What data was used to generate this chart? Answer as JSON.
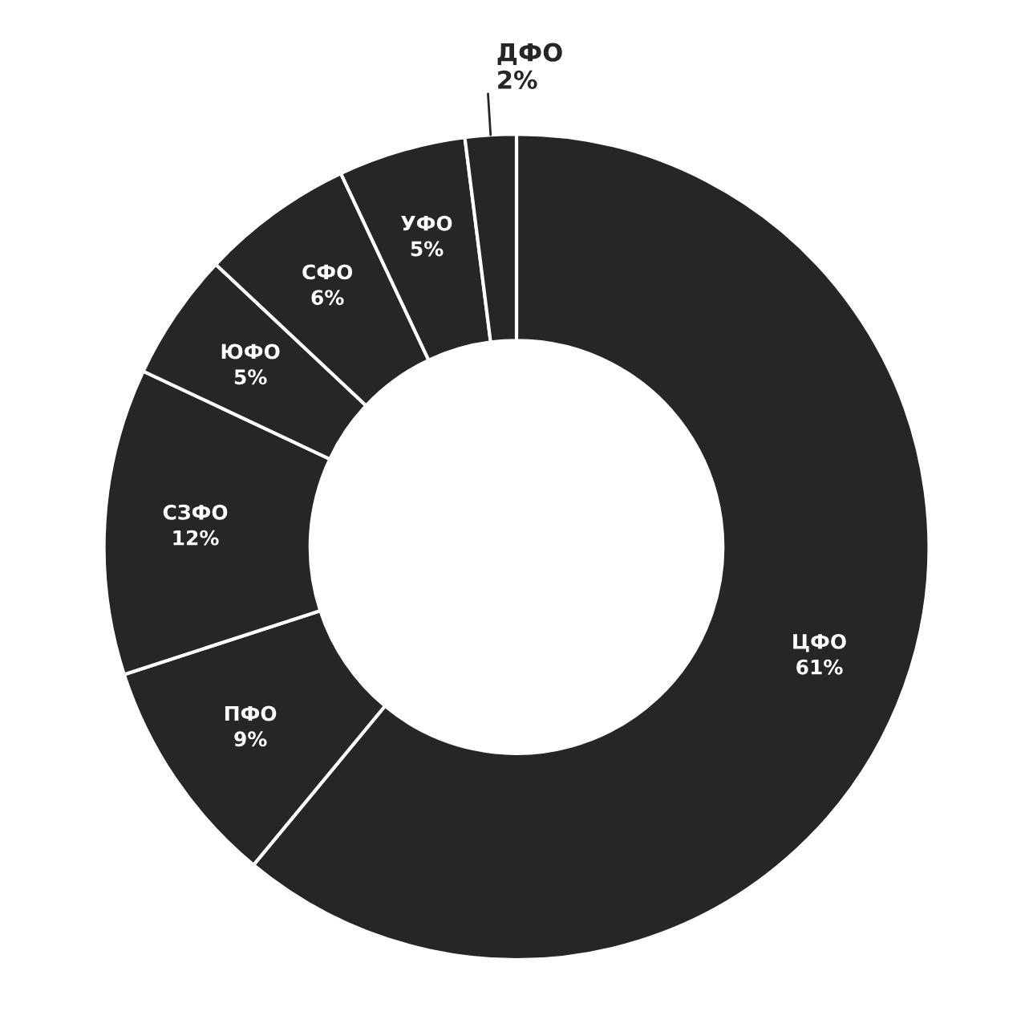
{
  "chart_data": {
    "type": "donut",
    "categories": [
      "ЦФО",
      "ПФО",
      "СЗФО",
      "ЮФО",
      "СФО",
      "УФО",
      "ДФО"
    ],
    "values": [
      61,
      9,
      12,
      5,
      6,
      5,
      2
    ],
    "value_labels": [
      "61%",
      "9%",
      "12%",
      "5%",
      "6%",
      "5%",
      "2%"
    ],
    "colors": [
      "#262626",
      "#262626",
      "#262626",
      "#262626",
      "#262626",
      "#262626",
      "#262626"
    ]
  }
}
